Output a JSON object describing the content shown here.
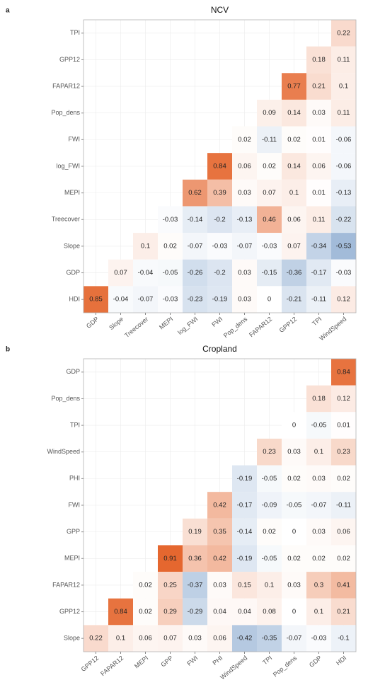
{
  "chart_data": [
    {
      "type": "heatmap",
      "panel_label": "a",
      "title": "NCV",
      "x_categories": [
        "GDP",
        "Slope",
        "Treecover",
        "MEPI",
        "log_FWI",
        "FWI",
        "Pop_dens",
        "FAPAR12",
        "GPP12",
        "TPI",
        "WindSpeed"
      ],
      "y_categories": [
        "TPI",
        "GPP12",
        "FAPAR12",
        "Pop_dens",
        "FWI",
        "log_FWI",
        "MEPI",
        "Treecover",
        "Slope",
        "GDP",
        "HDI"
      ],
      "values": [
        [
          null,
          null,
          null,
          null,
          null,
          null,
          null,
          null,
          null,
          null,
          0.22
        ],
        [
          null,
          null,
          null,
          null,
          null,
          null,
          null,
          null,
          null,
          0.18,
          0.11
        ],
        [
          null,
          null,
          null,
          null,
          null,
          null,
          null,
          null,
          0.77,
          0.21,
          0.1
        ],
        [
          null,
          null,
          null,
          null,
          null,
          null,
          null,
          0.09,
          0.14,
          0.03,
          0.11
        ],
        [
          null,
          null,
          null,
          null,
          null,
          null,
          0.02,
          -0.11,
          0.02,
          0.01,
          -0.06
        ],
        [
          null,
          null,
          null,
          null,
          null,
          0.84,
          0.06,
          0.02,
          0.14,
          0.06,
          -0.06
        ],
        [
          null,
          null,
          null,
          null,
          0.62,
          0.39,
          0.03,
          0.07,
          0.1,
          0.01,
          -0.13
        ],
        [
          null,
          null,
          null,
          -0.03,
          -0.14,
          -0.2,
          -0.13,
          0.46,
          0.06,
          0.11,
          -0.22
        ],
        [
          null,
          null,
          0.1,
          0.02,
          -0.07,
          -0.03,
          -0.07,
          -0.03,
          0.07,
          -0.34,
          -0.53
        ],
        [
          null,
          0.07,
          -0.04,
          -0.05,
          -0.26,
          -0.2,
          0.03,
          -0.15,
          -0.36,
          -0.17,
          -0.03
        ],
        [
          0.85,
          -0.04,
          -0.07,
          -0.03,
          -0.23,
          -0.19,
          0.03,
          0,
          -0.21,
          -0.11,
          0.12
        ]
      ],
      "zlim": [
        -1,
        1
      ],
      "color_scale": {
        "low": "#4f7fb8",
        "mid": "#ffffff",
        "high": "#e2581a"
      },
      "grid": true
    },
    {
      "type": "heatmap",
      "panel_label": "b",
      "title": "Cropland",
      "x_categories": [
        "GPP12",
        "FAPAR12",
        "MEPI",
        "GPP",
        "FWI",
        "PHI",
        "WindSpeed",
        "TPI",
        "Pop_dens",
        "GDP",
        "HDI"
      ],
      "y_categories": [
        "GDP",
        "Pop_dens",
        "TPI",
        "WindSpeed",
        "PHI",
        "FWI",
        "GPP",
        "MEPI",
        "FAPAR12",
        "GPP12",
        "Slope"
      ],
      "values": [
        [
          null,
          null,
          null,
          null,
          null,
          null,
          null,
          null,
          null,
          null,
          0.84
        ],
        [
          null,
          null,
          null,
          null,
          null,
          null,
          null,
          null,
          null,
          0.18,
          0.12
        ],
        [
          null,
          null,
          null,
          null,
          null,
          null,
          null,
          null,
          0,
          -0.05,
          0.01
        ],
        [
          null,
          null,
          null,
          null,
          null,
          null,
          null,
          0.23,
          0.03,
          0.1,
          0.23
        ],
        [
          null,
          null,
          null,
          null,
          null,
          null,
          -0.19,
          -0.05,
          0.02,
          0.03,
          0.02
        ],
        [
          null,
          null,
          null,
          null,
          null,
          0.42,
          -0.17,
          -0.09,
          -0.05,
          -0.07,
          -0.11
        ],
        [
          null,
          null,
          null,
          null,
          0.19,
          0.35,
          -0.14,
          0.02,
          0,
          0.03,
          0.06
        ],
        [
          null,
          null,
          null,
          0.91,
          0.36,
          0.42,
          -0.19,
          -0.05,
          0.02,
          0.02,
          0.02
        ],
        [
          null,
          null,
          0.02,
          0.25,
          -0.37,
          0.03,
          0.15,
          0.1,
          0.03,
          0.3,
          0.41
        ],
        [
          null,
          0.84,
          0.02,
          0.29,
          -0.29,
          0.04,
          0.04,
          0.08,
          0,
          0.1,
          0.21
        ],
        [
          0.22,
          0.1,
          0.06,
          0.07,
          0.03,
          0.06,
          -0.42,
          -0.35,
          -0.07,
          -0.03,
          -0.1
        ]
      ],
      "zlim": [
        -1,
        1
      ],
      "color_scale": {
        "low": "#4f7fb8",
        "mid": "#ffffff",
        "high": "#e2581a"
      },
      "grid": true
    }
  ]
}
